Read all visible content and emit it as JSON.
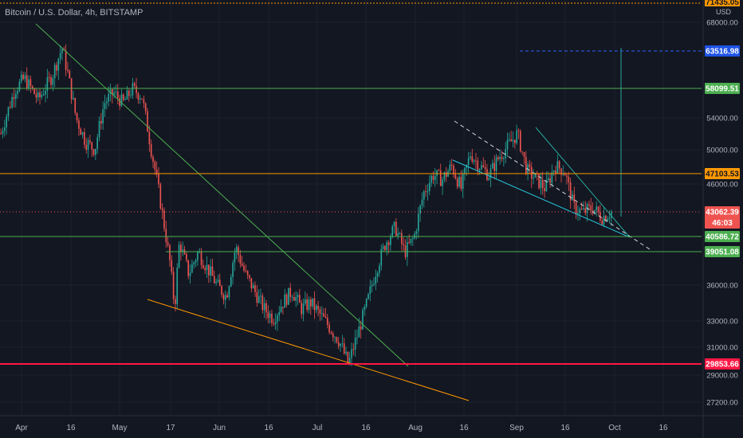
{
  "header": {
    "title": "Bitcoin / U.S. Dollar, 4h, BITSTAMP",
    "currency": "USD"
  },
  "chart_data": {
    "type": "candlestick",
    "title": "Bitcoin / U.S. Dollar, 4h, BITSTAMP",
    "ylabel": "USD",
    "y_ticks": [
      68000,
      54000,
      50000,
      46000,
      36000,
      33000,
      31000,
      29000,
      27200
    ],
    "x_ticks": [
      "Apr",
      "16",
      "May",
      "17",
      "Jun",
      "16",
      "Jul",
      "16",
      "Aug",
      "16",
      "Sep",
      "16",
      "Oct",
      "16"
    ],
    "price_path": [
      [
        0,
        52000
      ],
      [
        3,
        58000
      ],
      [
        5,
        59500
      ],
      [
        8,
        56500
      ],
      [
        11,
        60000
      ],
      [
        13,
        64000
      ],
      [
        14,
        61000
      ],
      [
        16,
        54000
      ],
      [
        18,
        51000
      ],
      [
        20,
        50000
      ],
      [
        22,
        56000
      ],
      [
        24,
        57500
      ],
      [
        26,
        56000
      ],
      [
        28,
        58000
      ],
      [
        30,
        57000
      ],
      [
        32,
        50000
      ],
      [
        34,
        44000
      ],
      [
        36,
        38000
      ],
      [
        37,
        34000
      ],
      [
        38,
        40000
      ],
      [
        40,
        37000
      ],
      [
        42,
        39000
      ],
      [
        44,
        37500
      ],
      [
        46,
        36000
      ],
      [
        48,
        35000
      ],
      [
        50,
        39500
      ],
      [
        52,
        37000
      ],
      [
        54,
        35500
      ],
      [
        56,
        34000
      ],
      [
        58,
        33200
      ],
      [
        60,
        34500
      ],
      [
        62,
        35500
      ],
      [
        64,
        34000
      ],
      [
        66,
        34500
      ],
      [
        68,
        33500
      ],
      [
        70,
        32500
      ],
      [
        72,
        31500
      ],
      [
        74,
        29800
      ],
      [
        76,
        32000
      ],
      [
        78,
        34500
      ],
      [
        80,
        37500
      ],
      [
        82,
        40000
      ],
      [
        84,
        41500
      ],
      [
        86,
        39000
      ],
      [
        88,
        40500
      ],
      [
        90,
        45000
      ],
      [
        92,
        47000
      ],
      [
        94,
        46500
      ],
      [
        96,
        48000
      ],
      [
        98,
        45500
      ],
      [
        100,
        49500
      ],
      [
        102,
        48000
      ],
      [
        104,
        47000
      ],
      [
        106,
        49000
      ],
      [
        108,
        50500
      ],
      [
        110,
        52000
      ],
      [
        112,
        47500
      ],
      [
        114,
        46500
      ],
      [
        116,
        45500
      ],
      [
        118,
        48000
      ],
      [
        120,
        47500
      ],
      [
        122,
        43500
      ],
      [
        124,
        43000
      ],
      [
        126,
        43500
      ],
      [
        128,
        42500
      ],
      [
        130,
        43062
      ]
    ],
    "price_range": {
      "min": 29000,
      "max": 66000
    },
    "horizontal_levels": [
      {
        "price": 63516.98,
        "label": "63516.98",
        "style": "dashed-blue"
      },
      {
        "price": 58099.51,
        "label": "58099.51",
        "style": "green"
      },
      {
        "price": 47103.53,
        "label": "47103.53",
        "style": "orange"
      },
      {
        "price": 43062.39,
        "label": "43062.39",
        "style": "red-current"
      },
      {
        "price": 40586.72,
        "label": "40586.72",
        "style": "green"
      },
      {
        "price": 39051.08,
        "label": "39051.08",
        "style": "green"
      },
      {
        "price": 29853.66,
        "label": "29853.66",
        "style": "red"
      }
    ],
    "current_price": {
      "price": "43062.39",
      "countdown": "46:03"
    },
    "partial_top_label": "71435.05",
    "colors": {
      "up": "#26a69a",
      "down": "#ef5350",
      "green_level": "#4caf50",
      "orange_level": "#ff9800",
      "red_level": "#ff1744",
      "blue_level": "#2962ff",
      "background": "#131722"
    }
  }
}
